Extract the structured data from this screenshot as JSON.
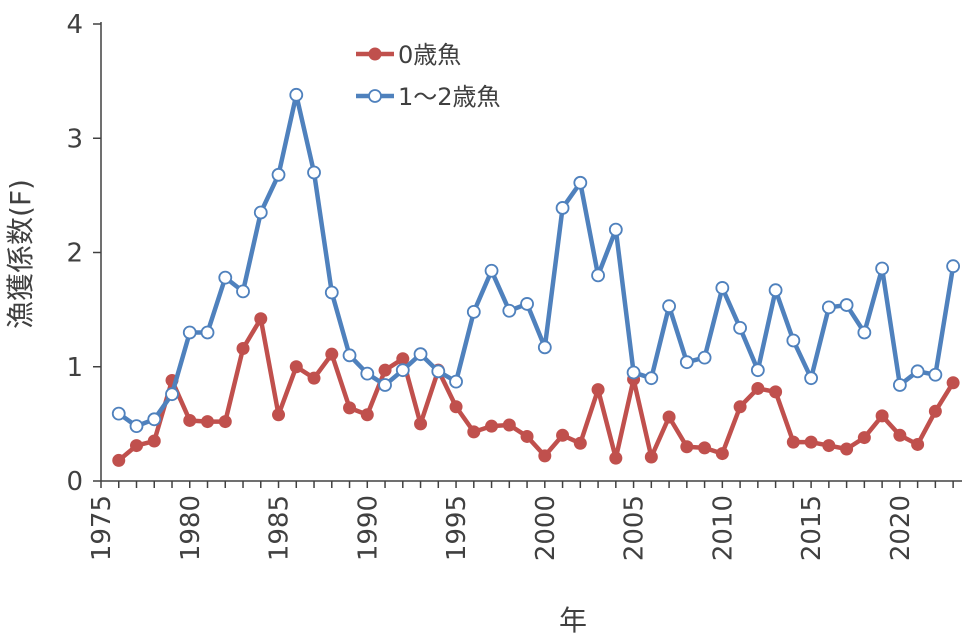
{
  "chart_data": {
    "type": "line",
    "title": "",
    "xlabel": "年",
    "ylabel": "漁獲係数(F)",
    "xlim": [
      1975,
      2023.5
    ],
    "ylim": [
      0,
      4
    ],
    "x_ticks": [
      1975,
      1980,
      1985,
      1990,
      1995,
      2000,
      2005,
      2010,
      2015,
      2020
    ],
    "y_ticks": [
      0,
      1,
      2,
      3,
      4
    ],
    "grid": false,
    "legend_position": "top-center",
    "series": [
      {
        "name": "0歳魚",
        "color": "#C0504D",
        "marker": "filled-circle",
        "x": [
          1976,
          1977,
          1978,
          1979,
          1980,
          1981,
          1982,
          1983,
          1984,
          1985,
          1986,
          1987,
          1988,
          1989,
          1990,
          1991,
          1992,
          1993,
          1994,
          1995,
          1996,
          1997,
          1998,
          1999,
          2000,
          2001,
          2002,
          2003,
          2004,
          2005,
          2006,
          2007,
          2008,
          2009,
          2010,
          2011,
          2012,
          2013,
          2014,
          2015,
          2016,
          2017,
          2018,
          2019,
          2020,
          2021,
          2022,
          2023
        ],
        "y": [
          0.18,
          0.31,
          0.35,
          0.88,
          0.53,
          0.52,
          0.52,
          1.16,
          1.42,
          0.58,
          1.0,
          0.9,
          1.11,
          0.64,
          0.58,
          0.97,
          1.07,
          0.5,
          0.97,
          0.65,
          0.43,
          0.48,
          0.49,
          0.39,
          0.22,
          0.4,
          0.33,
          0.8,
          0.2,
          0.89,
          0.21,
          0.56,
          0.3,
          0.29,
          0.24,
          0.65,
          0.81,
          0.78,
          0.34,
          0.34,
          0.31,
          0.28,
          0.38,
          0.57,
          0.4,
          0.32,
          0.61,
          0.86
        ]
      },
      {
        "name": "1～2歳魚",
        "color": "#4F81BD",
        "marker": "open-circle",
        "x": [
          1976,
          1977,
          1978,
          1979,
          1980,
          1981,
          1982,
          1983,
          1984,
          1985,
          1986,
          1987,
          1988,
          1989,
          1990,
          1991,
          1992,
          1993,
          1994,
          1995,
          1996,
          1997,
          1998,
          1999,
          2000,
          2001,
          2002,
          2003,
          2004,
          2005,
          2006,
          2007,
          2008,
          2009,
          2010,
          2011,
          2012,
          2013,
          2014,
          2015,
          2016,
          2017,
          2018,
          2019,
          2020,
          2021,
          2022,
          2023
        ],
        "y": [
          0.59,
          0.48,
          0.54,
          0.76,
          1.3,
          1.3,
          1.78,
          1.66,
          2.35,
          2.68,
          3.38,
          2.7,
          1.65,
          1.1,
          0.94,
          0.84,
          0.97,
          1.11,
          0.96,
          0.87,
          1.48,
          1.84,
          1.49,
          1.55,
          1.17,
          2.39,
          2.61,
          1.8,
          2.2,
          0.95,
          0.9,
          1.53,
          1.04,
          1.08,
          1.69,
          1.34,
          0.97,
          1.67,
          1.23,
          0.9,
          1.52,
          1.54,
          1.3,
          1.86,
          0.84,
          0.96,
          0.93,
          1.88
        ]
      }
    ]
  }
}
